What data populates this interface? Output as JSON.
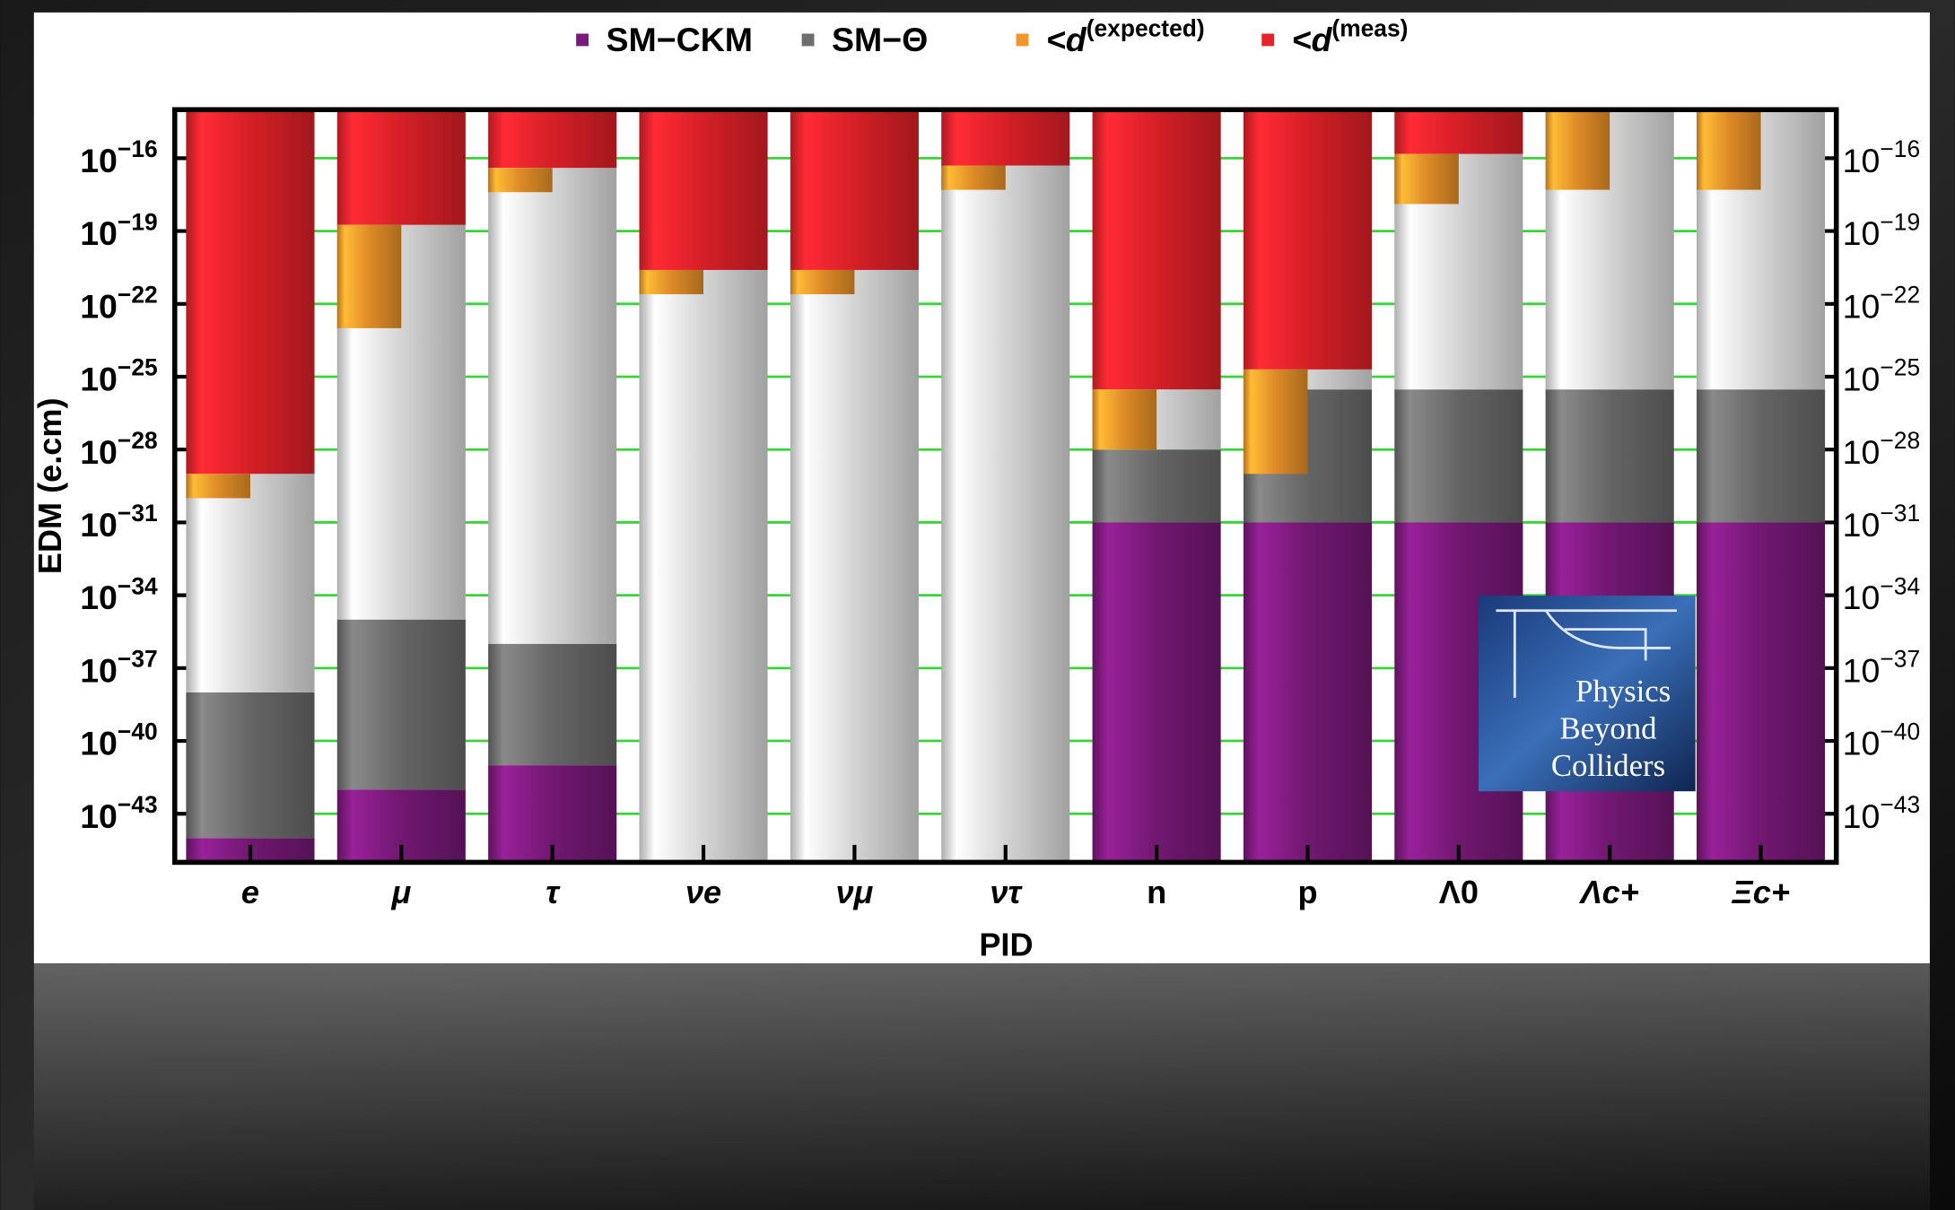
{
  "chart_data": {
    "type": "range-bar",
    "categories": [
      "e",
      "μ",
      "τ",
      "νe",
      "νμ",
      "ντ",
      "n",
      "p",
      "Λ0",
      "Λc+",
      "Ξc+"
    ],
    "series": [
      {
        "name": "SM−CKM",
        "color": "#7a1a7a",
        "values": [
          1e-44,
          1e-42,
          1e-41,
          null,
          null,
          null,
          1e-31,
          1e-31,
          1e-31,
          1e-31,
          1e-31
        ]
      },
      {
        "name": "SM−Θ",
        "color": "#6e6e6e",
        "values": [
          1e-38,
          1e-35,
          1e-36,
          null,
          null,
          null,
          1e-28,
          3e-26,
          3e-26,
          3e-26,
          3e-26
        ]
      },
      {
        "name": "<d(expected)",
        "color": "#f0962a",
        "values": [
          [
            1e-30,
            1e-29
          ],
          [
            1e-23,
            1.8e-19
          ],
          [
            4e-18,
            4e-17
          ],
          [
            2.5e-22,
            2.5e-21
          ],
          [
            2.5e-22,
            2.5e-21
          ],
          [
            5e-18,
            5e-17
          ],
          [
            1e-28,
            3e-26
          ],
          [
            1e-29,
            2e-25
          ],
          [
            1.3e-18,
            1.5e-16
          ],
          [
            5e-18,
            1e-14
          ],
          [
            5e-18,
            1e-14
          ]
        ]
      },
      {
        "name": "<d(meas)",
        "color": "#e8222a",
        "values": [
          1e-29,
          1.8e-19,
          4e-17,
          2.5e-21,
          2.5e-21,
          5e-17,
          3e-26,
          2e-25,
          1.5e-16,
          null,
          null
        ]
      }
    ],
    "x_label": "PID",
    "y_label": "EDM (e.cm)",
    "log_y": true,
    "grid": true,
    "grid_color": "#3ad43a",
    "ylim": [
      1e-45,
      1e-14
    ],
    "yticks": [
      {
        "value": 1e-16,
        "label": "10−16"
      },
      {
        "value": 1e-19,
        "label": "10−19"
      },
      {
        "value": 1e-22,
        "label": "10−22"
      },
      {
        "value": 1e-25,
        "label": "10−25"
      },
      {
        "value": 1e-28,
        "label": "10−28"
      },
      {
        "value": 1e-31,
        "label": "10−31"
      },
      {
        "value": 1e-34,
        "label": "10−34"
      },
      {
        "value": 1e-37,
        "label": "10−37"
      },
      {
        "value": 1e-40,
        "label": "10−40"
      },
      {
        "value": 1e-43,
        "label": "10−43"
      }
    ]
  },
  "logo": {
    "lines": [
      "Physics",
      "Beyond",
      "Colliders"
    ]
  }
}
